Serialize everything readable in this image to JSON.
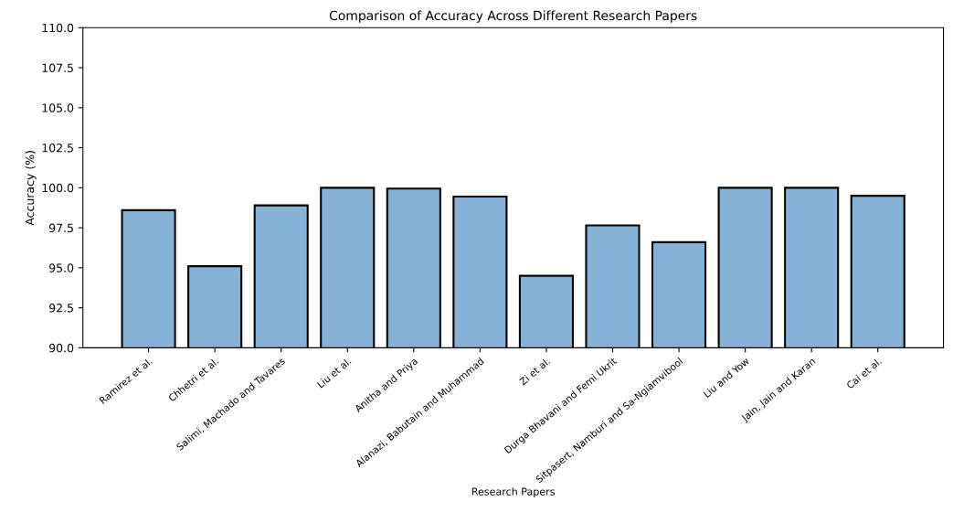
{
  "chart_data": {
    "type": "bar",
    "title": "Comparison of Accuracy Across Different Research Papers",
    "xlabel": "Research Papers",
    "ylabel": "Accuracy (%)",
    "categories": [
      "Ramirez et al.",
      "Chhetri et al.",
      "Salimi, Machado and Tavares",
      "Liu et al.",
      "Anitha and Priya",
      "Alanazi, Babutain and Muhammad",
      "Zi et al.",
      "Durga Bhavani and Femi Ukrit",
      "Sitpasert, Namburi and Sa-Ngiamvibool",
      "Liu and Yow",
      "Jain, Jain and Karan",
      "Cai et al."
    ],
    "values": [
      98.6,
      95.1,
      98.9,
      100.0,
      99.95,
      99.45,
      94.5,
      97.65,
      96.6,
      100.0,
      100.0,
      99.5
    ],
    "color": "#85b2d6",
    "ylim": [
      90,
      110
    ],
    "yticks": [
      {
        "value": 90,
        "label": "90.0"
      },
      {
        "value": 92.5,
        "label": "92.5"
      },
      {
        "value": 95,
        "label": "95.0"
      },
      {
        "value": 97.5,
        "label": "97.5"
      },
      {
        "value": 100,
        "label": "100.0"
      },
      {
        "value": 102.5,
        "label": "102.5"
      },
      {
        "value": 105,
        "label": "105.0"
      },
      {
        "value": 107.5,
        "label": "107.5"
      },
      {
        "value": 110,
        "label": "110.0"
      }
    ],
    "grid": false,
    "legend": false
  }
}
